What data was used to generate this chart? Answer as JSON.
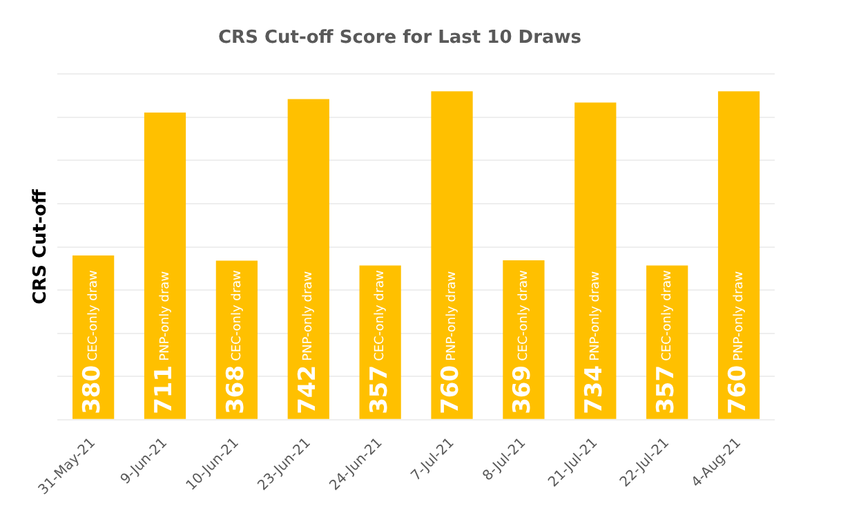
{
  "chart_data": {
    "type": "bar",
    "title": "CRS Cut-off Score for Last 10 Draws",
    "ylabel": "CRS Cut-off",
    "categories": [
      "31-May-21",
      "9-Jun-21",
      "10-Jun-21",
      "23-Jun-21",
      "24-Jun-21",
      "7-Jul-21",
      "8-Jul-21",
      "21-Jul-21",
      "22-Jul-21",
      "4-Aug-21"
    ],
    "values": [
      380,
      711,
      368,
      742,
      357,
      760,
      369,
      734,
      357,
      760
    ],
    "color": "#ffc000",
    "ylim": [
      0,
      800
    ],
    "yticks": [
      {
        "value": 0,
        "label": null
      },
      {
        "value": 100,
        "label": null
      },
      {
        "value": 200,
        "label": null
      },
      {
        "value": 300,
        "label": null
      },
      {
        "value": 400,
        "label": null
      },
      {
        "value": 500,
        "label": null
      },
      {
        "value": 600,
        "label": null
      },
      {
        "value": 700,
        "label": null
      },
      {
        "value": 800,
        "label": null
      }
    ],
    "tick_labels": "x",
    "grid": "y",
    "data_labels": true,
    "legend": false,
    "annotations": [
      {
        "text": "CEC-only draw",
        "x": "31-May-21"
      },
      {
        "text": "PNP-only draw",
        "x": "9-Jun-21"
      },
      {
        "text": "CEC-only draw",
        "x": "10-Jun-21"
      },
      {
        "text": "PNP-only draw",
        "x": "23-Jun-21"
      },
      {
        "text": "CEC-only draw",
        "x": "24-Jun-21"
      },
      {
        "text": "PNP-only draw",
        "x": "7-Jul-21"
      },
      {
        "text": "CEC-only draw",
        "x": "8-Jul-21"
      },
      {
        "text": "PNP-only draw",
        "x": "21-Jul-21"
      },
      {
        "text": "CEC-only draw",
        "x": "22-Jul-21"
      },
      {
        "text": "PNP-only draw",
        "x": "4-Aug-21"
      }
    ]
  }
}
